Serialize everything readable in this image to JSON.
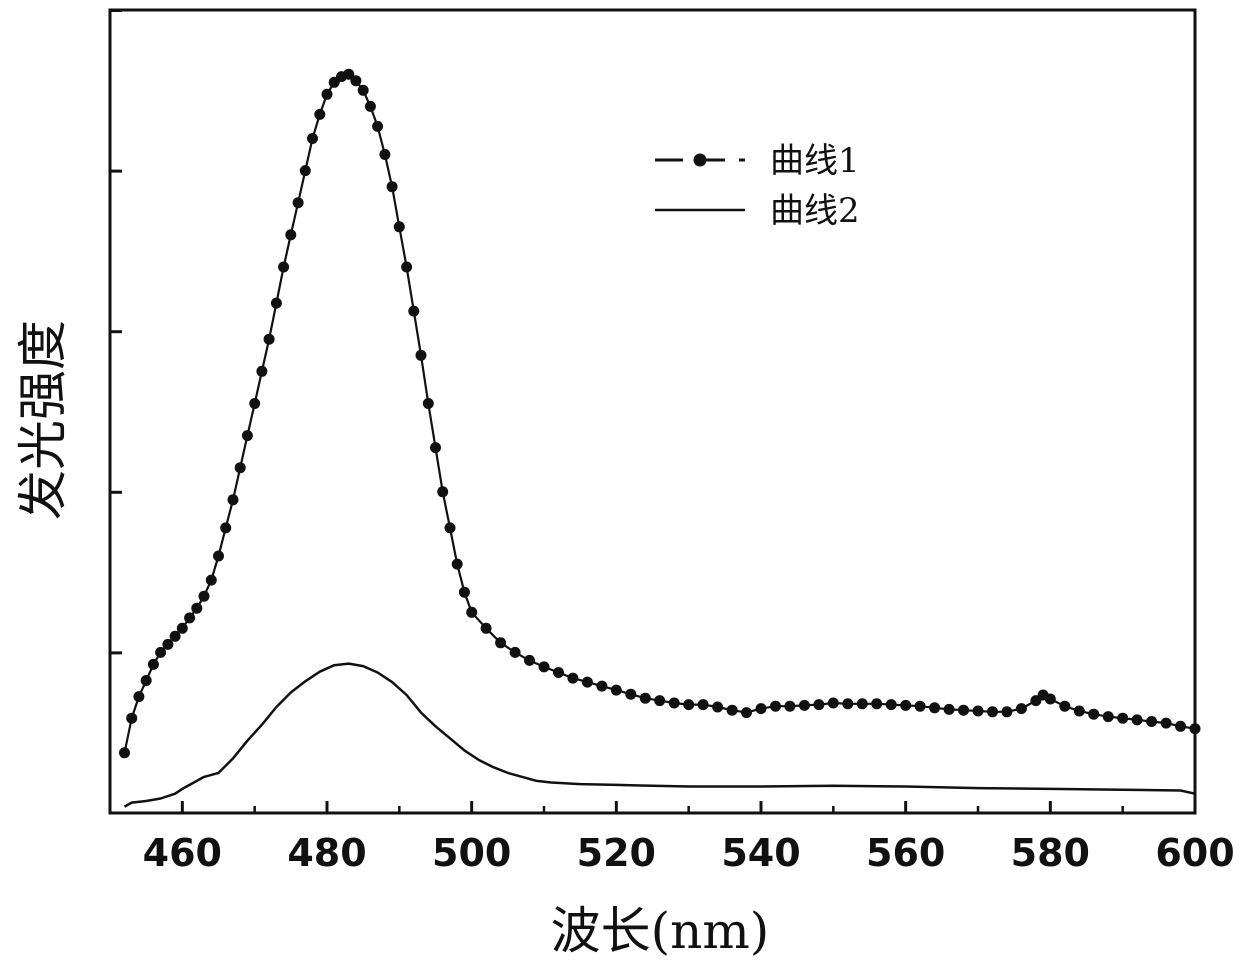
{
  "chart_data": {
    "type": "line",
    "title": "",
    "xlabel": "波长(nm)",
    "ylabel": "发光强度",
    "xlim": [
      450,
      600
    ],
    "ylim": [
      0,
      1
    ],
    "x_ticks": [
      460,
      480,
      500,
      520,
      540,
      560,
      580,
      600
    ],
    "y_ticks_labeled": false,
    "grid": false,
    "legend_position": "top-right",
    "series": [
      {
        "name": "曲线1",
        "style": "dashed-dots",
        "points": [
          [
            452,
            0.075
          ],
          [
            453,
            0.118
          ],
          [
            454,
            0.145
          ],
          [
            455,
            0.165
          ],
          [
            456,
            0.185
          ],
          [
            457,
            0.2
          ],
          [
            458,
            0.21
          ],
          [
            459,
            0.22
          ],
          [
            460,
            0.23
          ],
          [
            461,
            0.243
          ],
          [
            462,
            0.255
          ],
          [
            463,
            0.27
          ],
          [
            464,
            0.29
          ],
          [
            465,
            0.32
          ],
          [
            466,
            0.355
          ],
          [
            467,
            0.39
          ],
          [
            468,
            0.43
          ],
          [
            469,
            0.47
          ],
          [
            470,
            0.51
          ],
          [
            471,
            0.55
          ],
          [
            472,
            0.59
          ],
          [
            473,
            0.635
          ],
          [
            474,
            0.68
          ],
          [
            475,
            0.72
          ],
          [
            476,
            0.76
          ],
          [
            477,
            0.8
          ],
          [
            478,
            0.84
          ],
          [
            479,
            0.87
          ],
          [
            480,
            0.895
          ],
          [
            481,
            0.91
          ],
          [
            482,
            0.917
          ],
          [
            483,
            0.92
          ],
          [
            484,
            0.912
          ],
          [
            485,
            0.9
          ],
          [
            486,
            0.88
          ],
          [
            487,
            0.855
          ],
          [
            488,
            0.82
          ],
          [
            489,
            0.78
          ],
          [
            490,
            0.73
          ],
          [
            491,
            0.68
          ],
          [
            492,
            0.625
          ],
          [
            493,
            0.57
          ],
          [
            494,
            0.51
          ],
          [
            495,
            0.455
          ],
          [
            496,
            0.4
          ],
          [
            497,
            0.355
          ],
          [
            498,
            0.31
          ],
          [
            499,
            0.275
          ],
          [
            500,
            0.25
          ],
          [
            502,
            0.23
          ],
          [
            504,
            0.212
          ],
          [
            506,
            0.2
          ],
          [
            508,
            0.19
          ],
          [
            510,
            0.182
          ],
          [
            512,
            0.175
          ],
          [
            514,
            0.168
          ],
          [
            516,
            0.163
          ],
          [
            518,
            0.158
          ],
          [
            520,
            0.153
          ],
          [
            522,
            0.148
          ],
          [
            524,
            0.143
          ],
          [
            526,
            0.14
          ],
          [
            528,
            0.137
          ],
          [
            530,
            0.135
          ],
          [
            532,
            0.135
          ],
          [
            534,
            0.132
          ],
          [
            536,
            0.128
          ],
          [
            538,
            0.125
          ],
          [
            540,
            0.13
          ],
          [
            542,
            0.133
          ],
          [
            544,
            0.133
          ],
          [
            546,
            0.134
          ],
          [
            548,
            0.135
          ],
          [
            550,
            0.137
          ],
          [
            552,
            0.136
          ],
          [
            554,
            0.136
          ],
          [
            556,
            0.136
          ],
          [
            558,
            0.135
          ],
          [
            560,
            0.134
          ],
          [
            562,
            0.133
          ],
          [
            564,
            0.131
          ],
          [
            566,
            0.129
          ],
          [
            568,
            0.128
          ],
          [
            570,
            0.127
          ],
          [
            572,
            0.126
          ],
          [
            574,
            0.126
          ],
          [
            576,
            0.13
          ],
          [
            578,
            0.14
          ],
          [
            579,
            0.147
          ],
          [
            580,
            0.142
          ],
          [
            582,
            0.133
          ],
          [
            584,
            0.127
          ],
          [
            586,
            0.123
          ],
          [
            588,
            0.12
          ],
          [
            590,
            0.118
          ],
          [
            592,
            0.116
          ],
          [
            594,
            0.114
          ],
          [
            596,
            0.112
          ],
          [
            598,
            0.108
          ],
          [
            600,
            0.105
          ]
        ]
      },
      {
        "name": "曲线2",
        "style": "solid",
        "points": [
          [
            452,
            0.008
          ],
          [
            453,
            0.013
          ],
          [
            455,
            0.015
          ],
          [
            457,
            0.018
          ],
          [
            459,
            0.024
          ],
          [
            460,
            0.03
          ],
          [
            462,
            0.04
          ],
          [
            463,
            0.045
          ],
          [
            465,
            0.05
          ],
          [
            467,
            0.068
          ],
          [
            469,
            0.09
          ],
          [
            471,
            0.11
          ],
          [
            473,
            0.132
          ],
          [
            475,
            0.15
          ],
          [
            477,
            0.164
          ],
          [
            479,
            0.176
          ],
          [
            481,
            0.184
          ],
          [
            483,
            0.186
          ],
          [
            485,
            0.183
          ],
          [
            487,
            0.175
          ],
          [
            489,
            0.163
          ],
          [
            491,
            0.147
          ],
          [
            493,
            0.125
          ],
          [
            495,
            0.108
          ],
          [
            497,
            0.093
          ],
          [
            499,
            0.078
          ],
          [
            501,
            0.066
          ],
          [
            503,
            0.057
          ],
          [
            505,
            0.05
          ],
          [
            507,
            0.045
          ],
          [
            509,
            0.04
          ],
          [
            511,
            0.038
          ],
          [
            515,
            0.036
          ],
          [
            520,
            0.035
          ],
          [
            530,
            0.033
          ],
          [
            540,
            0.033
          ],
          [
            550,
            0.034
          ],
          [
            560,
            0.033
          ],
          [
            570,
            0.031
          ],
          [
            580,
            0.03
          ],
          [
            590,
            0.029
          ],
          [
            598,
            0.028
          ],
          [
            600,
            0.024
          ]
        ]
      }
    ]
  }
}
